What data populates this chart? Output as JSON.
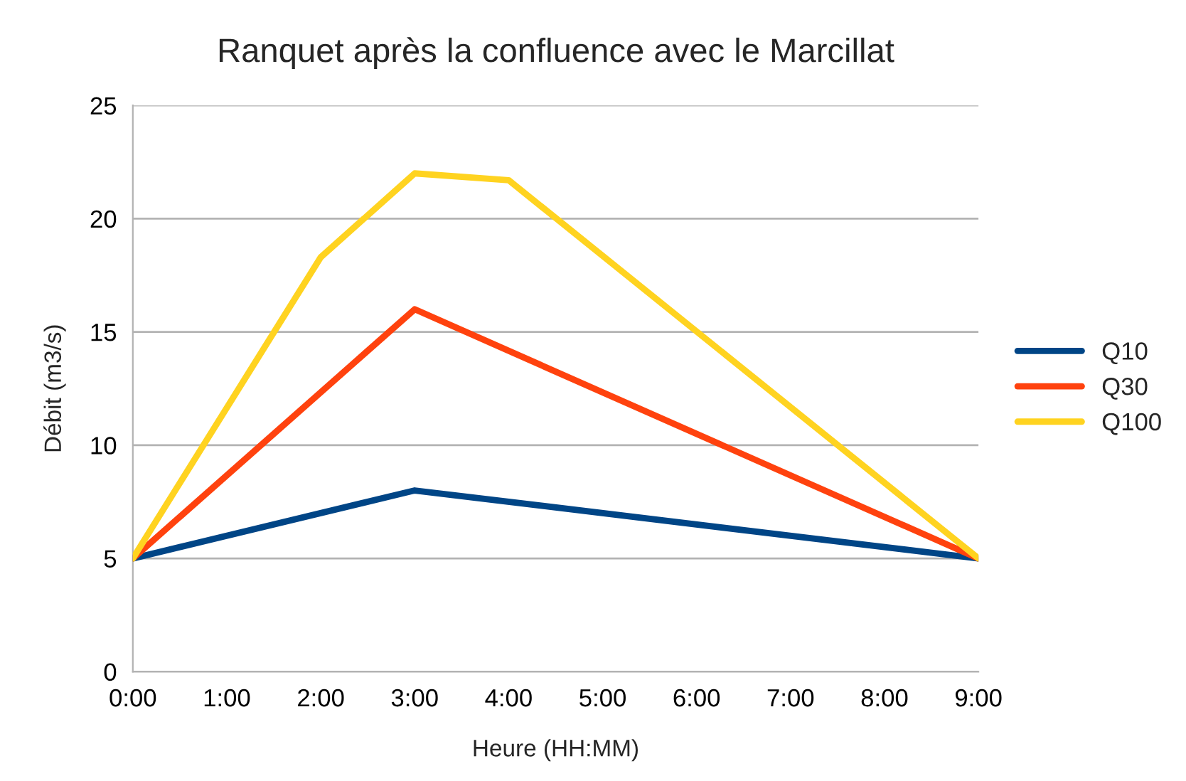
{
  "chart_data": {
    "type": "line",
    "title": "Ranquet après la confluence avec le Marcillat",
    "xlabel": "Heure (HH:MM)",
    "ylabel": "Débit (m3/s)",
    "series": [
      {
        "name": "Q10",
        "color": "#004586",
        "x": [
          0,
          3,
          9
        ],
        "values": [
          5,
          8,
          5
        ]
      },
      {
        "name": "Q30",
        "color": "#ff420e",
        "x": [
          0,
          3,
          9
        ],
        "values": [
          5,
          16,
          5
        ]
      },
      {
        "name": "Q100",
        "color": "#ffd320",
        "x": [
          0,
          2,
          3,
          4,
          9
        ],
        "values": [
          5,
          18.3,
          22,
          21.7,
          5
        ]
      }
    ],
    "xlim": [
      0,
      9
    ],
    "xticks": [
      {
        "value": 0,
        "label": "0:00"
      },
      {
        "value": 1,
        "label": "1:00"
      },
      {
        "value": 2,
        "label": "2:00"
      },
      {
        "value": 3,
        "label": "3:00"
      },
      {
        "value": 4,
        "label": "4:00"
      },
      {
        "value": 5,
        "label": "5:00"
      },
      {
        "value": 6,
        "label": "6:00"
      },
      {
        "value": 7,
        "label": "7:00"
      },
      {
        "value": 8,
        "label": "8:00"
      },
      {
        "value": 9,
        "label": "9:00"
      }
    ],
    "ylim": [
      0,
      25
    ],
    "yticks": [
      0,
      5,
      10,
      15,
      20,
      25
    ],
    "grid": "y",
    "legend": "right",
    "marker": "none",
    "line_style": "solid"
  }
}
